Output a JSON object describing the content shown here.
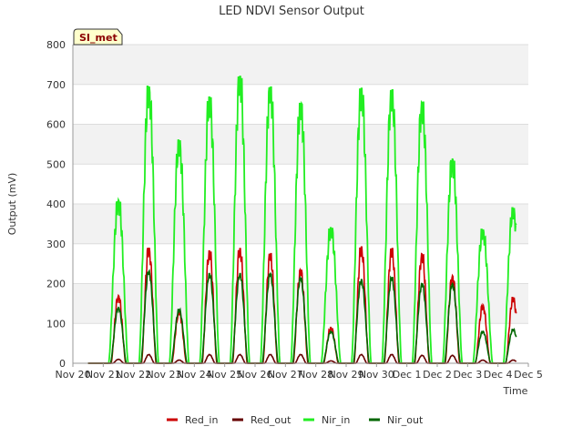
{
  "chart_data": {
    "type": "line",
    "title": "LED NDVI Sensor Output",
    "xlabel": "Time",
    "ylabel": "Output (mV)",
    "site_label": "SI_met",
    "ylim": [
      0,
      800
    ],
    "y_ticks": [
      "0",
      "100",
      "200",
      "300",
      "400",
      "500",
      "600",
      "700",
      "800"
    ],
    "x_ticks": [
      "Nov 20",
      "Nov 21",
      "Nov 22",
      "Nov 23",
      "Nov 24",
      "Nov 25",
      "Nov 26",
      "Nov 27",
      "Nov 28",
      "Nov 29",
      "Nov 30",
      "Dec 1",
      "Dec 2",
      "Dec 3",
      "Dec 4",
      "Dec 5"
    ],
    "xlim_days": [
      0,
      15
    ],
    "grid": true,
    "legend_position": "bottom",
    "day_peaks": {
      "days": [
        "Nov 21",
        "Nov 22",
        "Nov 23",
        "Nov 24",
        "Nov 25",
        "Nov 26",
        "Nov 27",
        "Nov 28",
        "Nov 29",
        "Nov 30",
        "Dec 1",
        "Dec 2",
        "Dec 3",
        "Dec 4"
      ],
      "Nir_in": [
        410,
        695,
        560,
        668,
        720,
        693,
        652,
        340,
        690,
        686,
        655,
        514,
        336,
        390
      ],
      "Red_in": [
        170,
        290,
        130,
        282,
        288,
        275,
        235,
        90,
        292,
        288,
        275,
        220,
        145,
        165
      ],
      "Nir_out": [
        140,
        232,
        135,
        225,
        225,
        225,
        215,
        80,
        210,
        215,
        200,
        200,
        80,
        85
      ],
      "Red_out": [
        10,
        22,
        8,
        22,
        22,
        22,
        22,
        6,
        22,
        22,
        20,
        20,
        8,
        8
      ]
    },
    "series": [
      {
        "name": "Red_in",
        "color": "#cc0000"
      },
      {
        "name": "Red_out",
        "color": "#660000"
      },
      {
        "name": "Nir_in",
        "color": "#22ee22"
      },
      {
        "name": "Nir_out",
        "color": "#006600"
      }
    ]
  }
}
